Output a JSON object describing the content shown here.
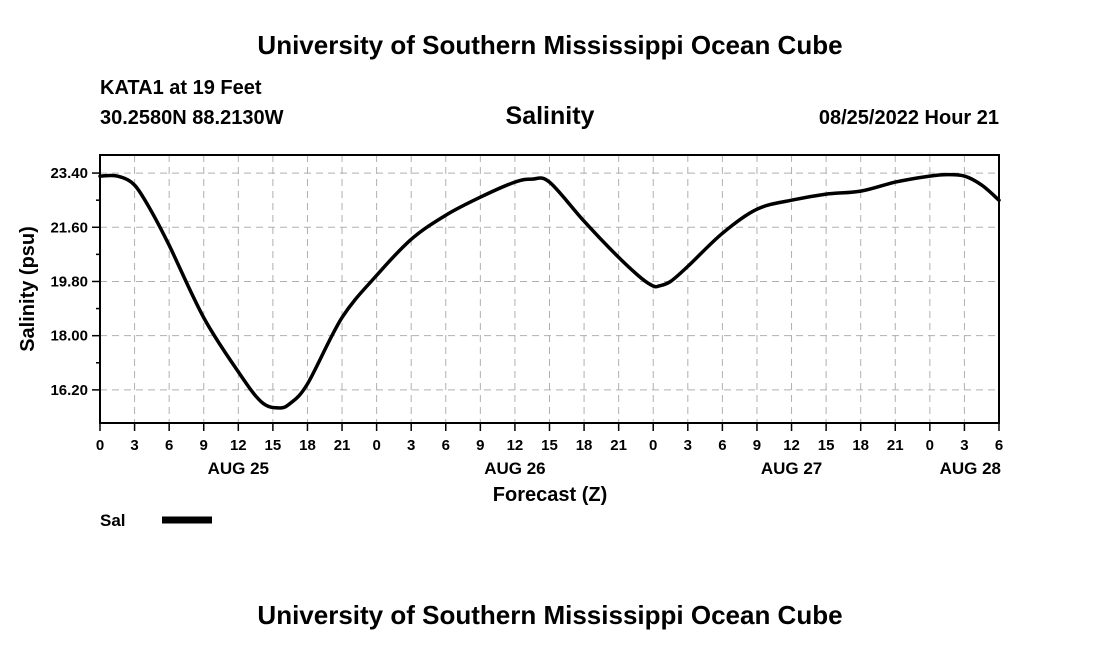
{
  "header": {
    "title_top": "University of Southern Mississippi Ocean Cube",
    "station": "KATA1 at 19 Feet",
    "coords": "30.2580N  88.2130W",
    "plot_title": "Salinity",
    "timestamp": "08/25/2022 Hour 21",
    "title_bottom": "University of Southern Mississippi Ocean Cube"
  },
  "legend": {
    "label": "Sal",
    "color": "#000000"
  },
  "chart_data": {
    "type": "line",
    "title": "Salinity",
    "xlabel": "Forecast (Z)",
    "ylabel": "Salinity (psu)",
    "ylim": [
      15.1,
      24.0
    ],
    "xlim": [
      0,
      78
    ],
    "x_unit": "hours from 00Z AUG 25",
    "grid": true,
    "legend_position": "bottom-left",
    "yticks": [
      16.2,
      18.0,
      19.8,
      21.6,
      23.4
    ],
    "ytick_labels": [
      "16.20",
      "18.00",
      "19.80",
      "21.60",
      "23.40"
    ],
    "xticks": [
      0,
      3,
      6,
      9,
      12,
      15,
      18,
      21,
      24,
      27,
      30,
      33,
      36,
      39,
      42,
      45,
      48,
      51,
      54,
      57,
      60,
      63,
      66,
      69,
      72,
      75,
      78
    ],
    "xtick_labels": [
      "0",
      "3",
      "6",
      "9",
      "12",
      "15",
      "18",
      "21",
      "0",
      "3",
      "6",
      "9",
      "12",
      "15",
      "18",
      "21",
      "0",
      "3",
      "6",
      "9",
      "12",
      "15",
      "18",
      "21",
      "0",
      "3",
      "6"
    ],
    "day_labels": [
      {
        "x": 12,
        "label": "AUG 25"
      },
      {
        "x": 36,
        "label": "AUG 26"
      },
      {
        "x": 60,
        "label": "AUG 27"
      },
      {
        "x": 78,
        "label": "AUG 28"
      }
    ],
    "series": [
      {
        "name": "Sal",
        "x": [
          0,
          1.5,
          3,
          4.5,
          6,
          9,
          12,
          14,
          15.5,
          16.5,
          18,
          21,
          24,
          27,
          30,
          33,
          36,
          37.5,
          39,
          42,
          45,
          47,
          48,
          48.5,
          49.5,
          51,
          54,
          57,
          60,
          63,
          66,
          69,
          72,
          73.5,
          75,
          76.5,
          78
        ],
        "y": [
          23.3,
          23.3,
          23.0,
          22.1,
          21.0,
          18.6,
          16.8,
          15.8,
          15.6,
          15.75,
          16.4,
          18.6,
          20.0,
          21.2,
          22.0,
          22.6,
          23.1,
          23.2,
          23.1,
          21.8,
          20.6,
          19.9,
          19.65,
          19.65,
          19.8,
          20.3,
          21.4,
          22.2,
          22.5,
          22.7,
          22.8,
          23.1,
          23.3,
          23.35,
          23.3,
          23.0,
          22.5
        ]
      }
    ]
  }
}
